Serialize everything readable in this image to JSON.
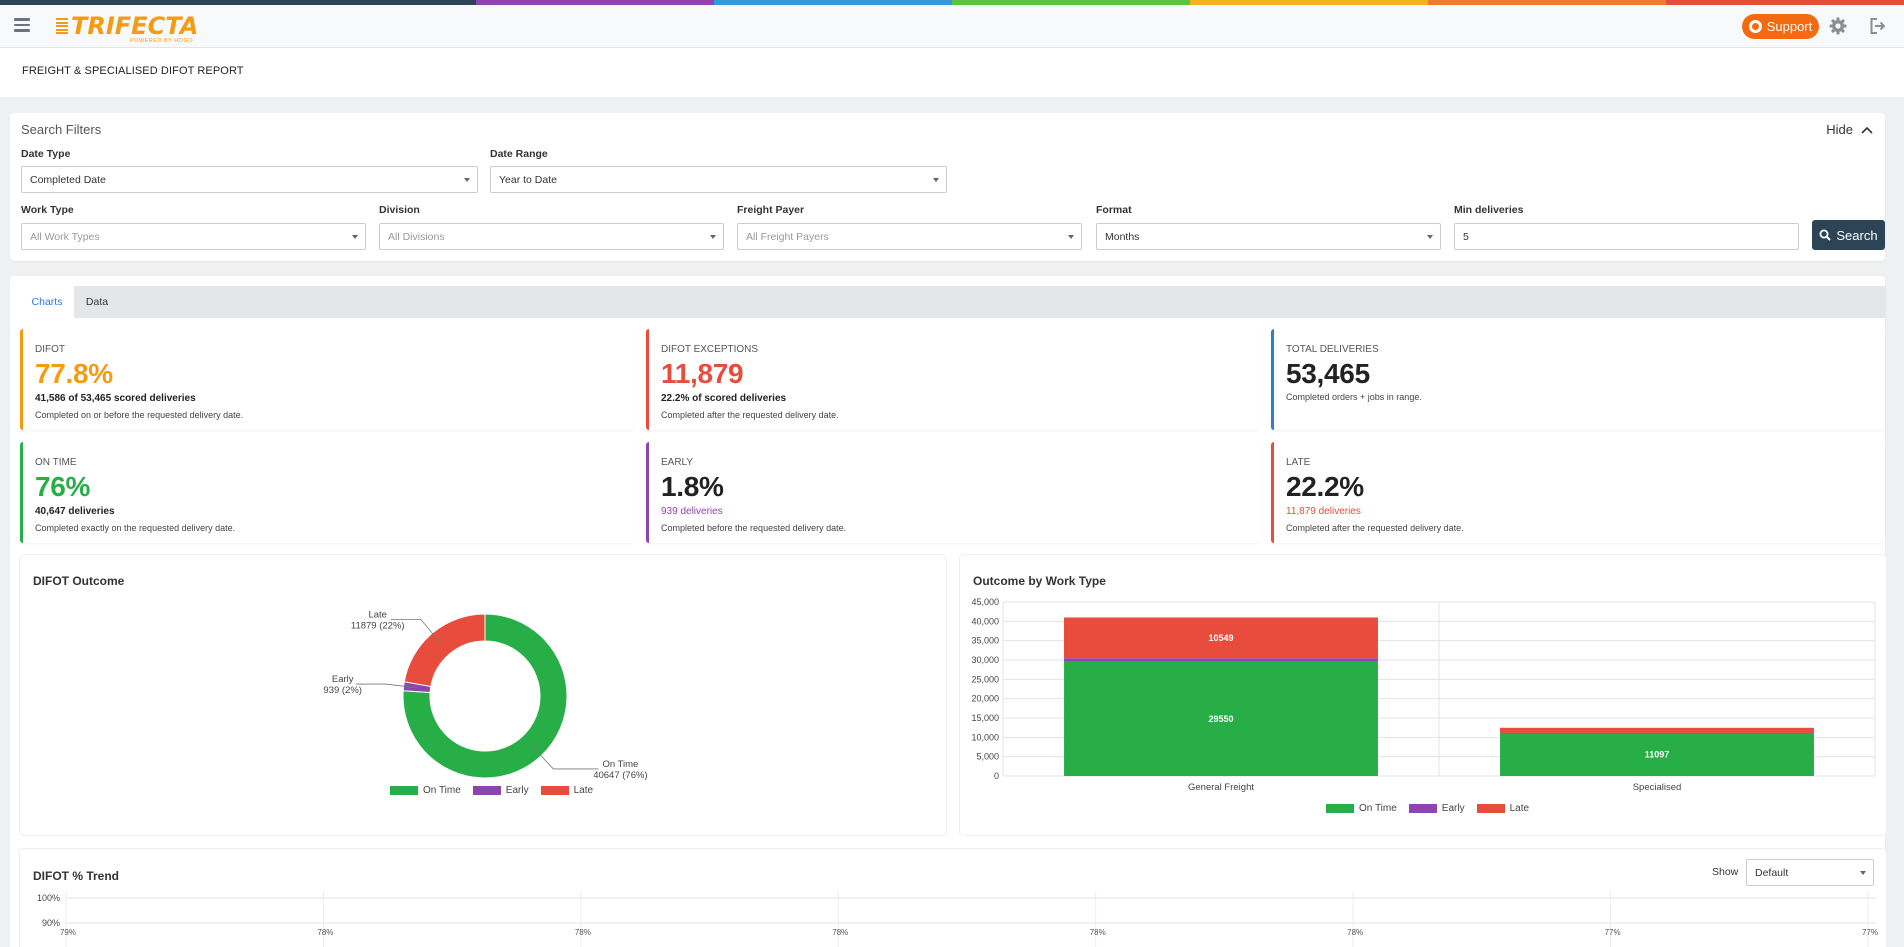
{
  "colors": {
    "stripe": [
      "#2d4457",
      "#2d4457",
      "#8e44ad",
      "#3498db",
      "#5dc23d",
      "#f2b21c",
      "#f07b2e",
      "#e74c3c"
    ],
    "on_time": "#27ae47",
    "early": "#8e44ad",
    "late": "#e74c3c",
    "accent": "#f39c12",
    "support": "#f36a10",
    "search_button": "#2d4457",
    "total": "#2d7fd0"
  },
  "header": {
    "logo_text": "TRIFECTA",
    "logo_sub": "POWERED BY HOGO",
    "support_label": "Support",
    "menu_icon": "hamburger-icon",
    "settings_icon": "gear-icon",
    "logout_icon": "logout-icon"
  },
  "page": {
    "title": "FREIGHT & SPECIALISED DIFOT REPORT"
  },
  "filters": {
    "title": "Search Filters",
    "hide_label": "Hide",
    "date_type": {
      "label": "Date Type",
      "value": "Completed Date"
    },
    "date_range": {
      "label": "Date Range",
      "value": "Year to Date"
    },
    "work_type": {
      "label": "Work Type",
      "placeholder": "All Work Types"
    },
    "division": {
      "label": "Division",
      "placeholder": "All Divisions"
    },
    "freight_payer": {
      "label": "Freight Payer",
      "placeholder": "All Freight Payers"
    },
    "format": {
      "label": "Format",
      "value": "Months"
    },
    "min_deliveries": {
      "label": "Min deliveries",
      "value": "5"
    },
    "search_label": "Search"
  },
  "tabs": [
    {
      "label": "Charts",
      "active": true
    },
    {
      "label": "Data",
      "active": false
    }
  ],
  "kpis": {
    "difot": {
      "label": "DIFOT",
      "value": "77.8%",
      "sub": "41,586 of 53,465 scored deliveries",
      "desc": "Completed on or before the requested delivery date."
    },
    "exceptions": {
      "label": "DIFOT EXCEPTIONS",
      "value": "11,879",
      "sub": "22.2% of scored deliveries",
      "desc": "Completed after the requested delivery date."
    },
    "total": {
      "label": "TOTAL DELIVERIES",
      "value": "53,465",
      "desc": "Completed orders + jobs in range."
    },
    "on_time": {
      "label": "ON TIME",
      "value": "76%",
      "sub": "40,647 deliveries",
      "desc": "Completed exactly on the requested delivery date."
    },
    "early": {
      "label": "EARLY",
      "value": "1.8%",
      "sub": "939 deliveries",
      "desc": "Completed before the requested delivery date."
    },
    "late": {
      "label": "LATE",
      "value": "22.2%",
      "sub": "11,879 deliveries",
      "desc": "Completed after the requested delivery date."
    }
  },
  "trend": {
    "title": "DIFOT % Trend",
    "show_label": "Show",
    "show_value": "Default"
  },
  "chart_data": [
    {
      "type": "pie",
      "title": "DIFOT Outcome",
      "donut": true,
      "labels": [
        "On Time",
        "Early",
        "Late"
      ],
      "values": [
        40647,
        939,
        11879
      ],
      "slice_labels": [
        {
          "name": "On Time",
          "text": "40647 (76%)"
        },
        {
          "name": "Early",
          "text": "939 (2%)"
        },
        {
          "name": "Late",
          "text": "11879 (22%)"
        }
      ],
      "legend": [
        "On Time",
        "Early",
        "Late"
      ],
      "legend_position": "bottom"
    },
    {
      "type": "bar",
      "stacked": true,
      "title": "Outcome by Work Type",
      "categories": [
        "General Freight",
        "Specialised"
      ],
      "series": [
        {
          "name": "On Time",
          "values": [
            29550,
            11097
          ],
          "label": [
            "29550",
            "11097"
          ]
        },
        {
          "name": "Early",
          "values": [
            900,
            39
          ]
        },
        {
          "name": "Late",
          "values": [
            10549,
            1330
          ],
          "label": [
            "10549",
            ""
          ]
        }
      ],
      "ylim": [
        0,
        45000
      ],
      "yticks": [
        "45,000",
        "40,000",
        "35,000",
        "30,000",
        "25,000",
        "20,000",
        "15,000",
        "10,000",
        "5,000",
        "0"
      ],
      "grid": true,
      "legend": [
        "On Time",
        "Early",
        "Late"
      ],
      "legend_position": "bottom"
    },
    {
      "type": "line",
      "title": "DIFOT % Trend",
      "yticks": [
        "100%",
        "90%"
      ],
      "point_labels": [
        "79%",
        "78%",
        "78%",
        "78%",
        "78%",
        "78%",
        "77%",
        "77%"
      ]
    }
  ]
}
